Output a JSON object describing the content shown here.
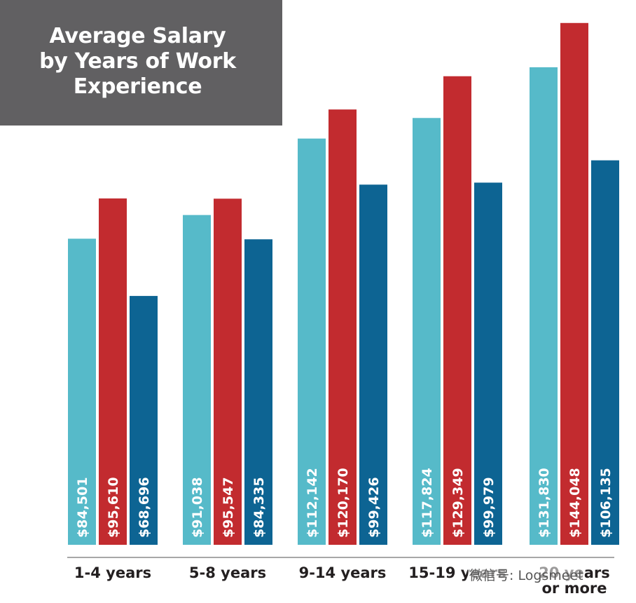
{
  "title_lines": [
    "Average Salary",
    "by Years of Work",
    "Experience"
  ],
  "watermark": "微信号: Logsmeet",
  "colors": {
    "title_bg": "#616062",
    "series": [
      "#56bac9",
      "#c22b2f",
      "#0d6493"
    ]
  },
  "chart_data": {
    "type": "bar",
    "title": "Average Salary by Years of Work Experience",
    "categories": [
      "1-4 years",
      "5-8 years",
      "9-14 years",
      "15-19 years",
      "20 years or more"
    ],
    "category_label_lines": [
      [
        "1-4 years"
      ],
      [
        "5-8 years"
      ],
      [
        "9-14 years"
      ],
      [
        "15-19 years"
      ],
      [
        "20 years",
        "or more"
      ]
    ],
    "series": [
      {
        "values": [
          84501,
          91038,
          112142,
          117824,
          131830
        ],
        "labels": [
          "$84,501",
          "$91,038",
          "$112,142",
          "$117,824",
          "$131,830"
        ]
      },
      {
        "values": [
          95610,
          95547,
          120170,
          129349,
          144048
        ],
        "labels": [
          "$95,610",
          "$95,547",
          "$120,170",
          "$129,349",
          "$144,048"
        ]
      },
      {
        "values": [
          68696,
          84335,
          99426,
          99979,
          106135
        ],
        "labels": [
          "$68,696",
          "$84,335",
          "$99,426",
          "$99,979",
          "$106,135"
        ]
      }
    ],
    "xlabel": "",
    "ylabel": "",
    "grid": false,
    "legend": "none"
  }
}
